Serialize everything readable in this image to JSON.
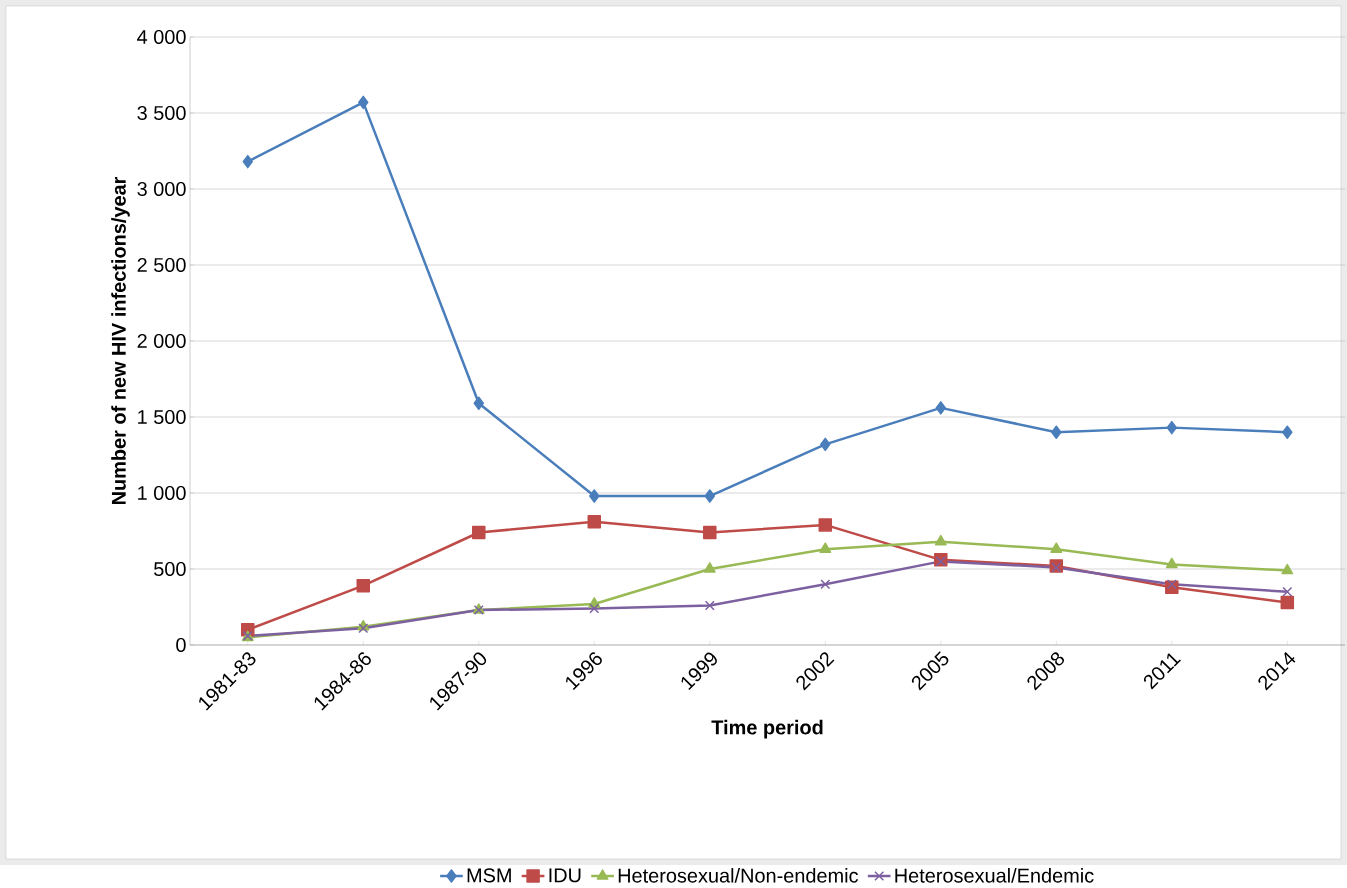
{
  "chart_data": {
    "type": "line",
    "xlabel": "Time period",
    "ylabel": "Number of new HIV infections/year",
    "categories": [
      "1981-83",
      "1984-86",
      "1987-90",
      "1996",
      "1999",
      "2002",
      "2005",
      "2008",
      "2011",
      "2014"
    ],
    "series": [
      {
        "name": "MSM",
        "color": "#4a7ebb",
        "marker": "diamond",
        "values": [
          3180,
          3570,
          1590,
          980,
          980,
          1320,
          1560,
          1400,
          1430,
          1400
        ]
      },
      {
        "name": "IDU",
        "color": "#be4b48",
        "marker": "square",
        "values": [
          100,
          390,
          740,
          810,
          740,
          790,
          560,
          520,
          380,
          280
        ]
      },
      {
        "name": "Heterosexual/Non-endemic",
        "color": "#98b954",
        "marker": "triangle",
        "values": [
          50,
          120,
          230,
          270,
          500,
          630,
          680,
          630,
          530,
          490
        ]
      },
      {
        "name": "Heterosexual/Endemic",
        "color": "#7d60a0",
        "marker": "cross",
        "values": [
          60,
          110,
          230,
          240,
          260,
          400,
          550,
          510,
          400,
          350
        ]
      }
    ],
    "ylim": [
      0,
      4000
    ],
    "yticks": [
      0,
      500,
      {
        "value": 1000,
        "label": "1 000"
      },
      {
        "value": 1500,
        "label": "1 500"
      },
      {
        "value": 2000,
        "label": "2 000"
      },
      {
        "value": 2500,
        "label": "2 500"
      },
      {
        "value": 3000,
        "label": "3 000"
      },
      {
        "value": 3500,
        "label": "3 500"
      },
      {
        "value": 4000,
        "label": "4 000"
      }
    ],
    "grid": "y",
    "legend": "bottom",
    "line_style": "solid"
  }
}
